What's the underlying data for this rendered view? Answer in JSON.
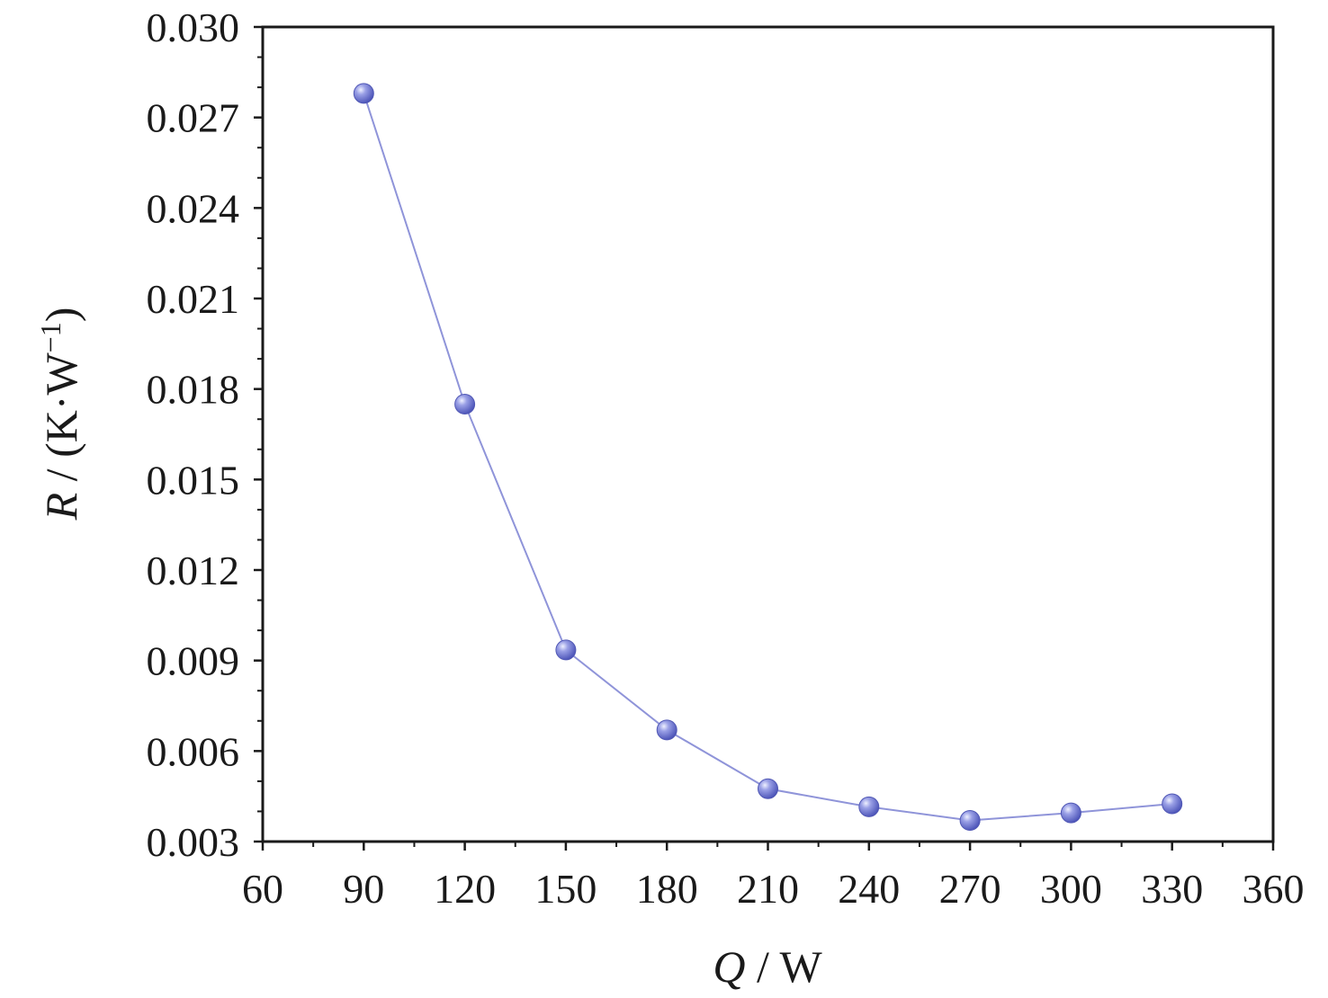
{
  "chart_data": {
    "type": "line",
    "title": "",
    "xlabel_symbol": "Q",
    "xlabel_unit": " / W",
    "ylabel_symbol": "R",
    "ylabel_unit": " / (K·W",
    "ylabel_exp": "−1",
    "ylabel_close": ")",
    "xlim": [
      60,
      360
    ],
    "ylim": [
      0.003,
      0.03
    ],
    "x_ticks": [
      60,
      90,
      120,
      150,
      180,
      210,
      240,
      270,
      300,
      330,
      360
    ],
    "x_tick_labels": [
      "60",
      "90",
      "120",
      "150",
      "180",
      "210",
      "240",
      "270",
      "300",
      "330",
      "360"
    ],
    "y_ticks": [
      0.003,
      0.006,
      0.009,
      0.012,
      0.015,
      0.018,
      0.021,
      0.024,
      0.027,
      0.03
    ],
    "y_tick_labels": [
      "0.003",
      "0.006",
      "0.009",
      "0.012",
      "0.015",
      "0.018",
      "0.021",
      "0.024",
      "0.027",
      "0.030"
    ],
    "grid": false,
    "legend": "none",
    "colors": {
      "series": "#7b82d6",
      "line": "#8f94d9",
      "axis": "#1a1a1a"
    },
    "series": [
      {
        "x": [
          90,
          120,
          150,
          180,
          210,
          240,
          270,
          300,
          330
        ],
        "y": [
          0.0278,
          0.0175,
          0.00935,
          0.0067,
          0.00475,
          0.00415,
          0.0037,
          0.00395,
          0.00425
        ]
      }
    ]
  }
}
